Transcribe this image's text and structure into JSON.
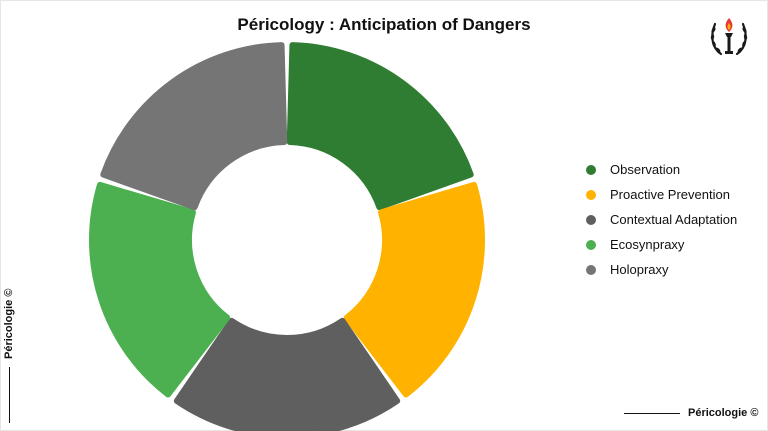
{
  "chart_data": {
    "type": "pie",
    "title": "Péricology : Anticipation of Dangers",
    "categories": [
      "Observation",
      "Proactive Prevention",
      "Contextual Adaptation",
      "Ecosynpraxy",
      "Holopraxy"
    ],
    "values": [
      20,
      20,
      20,
      20,
      20
    ],
    "colors": [
      "#2e7d32",
      "#ffb300",
      "#5f5f5f",
      "#4caf50",
      "#757575"
    ],
    "legend_position": "right",
    "donut": true
  },
  "watermark": {
    "bottom_text": "Péricologie ©",
    "side_text": "Péricologie ©"
  },
  "logo": {
    "icon": "torch-laurel-emblem-icon"
  }
}
